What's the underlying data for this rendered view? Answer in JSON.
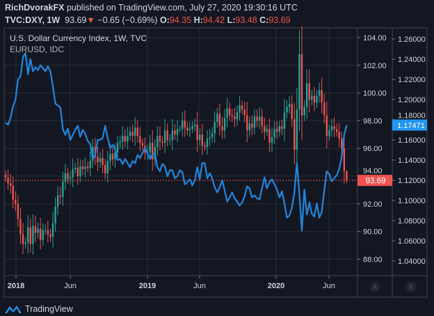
{
  "header": {
    "author": "RichDvorakFX",
    "published_text": "published on TradingView.com, July 27, 2020 19:30:16 UTC",
    "symbol": "TVC:DXY, 1W",
    "last": "93.69",
    "change": "−0.65 (−0.69%)",
    "o_label": "O:",
    "o": "94.35",
    "h_label": "H:",
    "h": "94.42",
    "l_label": "L:",
    "l": "93.48",
    "c_label": "C:",
    "c": "93.69"
  },
  "legend": {
    "main": "U.S. Dollar Currency Index, 1W, TVC",
    "overlay": "EURUSD, IDC"
  },
  "footer": {
    "brand": "TradingView"
  },
  "scale_buttons": {
    "a": "A",
    "b": "B"
  },
  "colors": {
    "bg": "#131722",
    "up": "#26a69a",
    "down": "#ef5350",
    "line": "#2184d9",
    "grid": "#2a2e39",
    "text": "#d1d4dc"
  },
  "chart_data": {
    "type": "candlestick+line",
    "interval": "1W",
    "x_start": "2017-12-04",
    "x_tick_labels": [
      "2018",
      "Jun",
      "2019",
      "Jun",
      "2020",
      "Jun"
    ],
    "series": [
      {
        "name": "DXY",
        "axis": "left-scale",
        "type": "candlestick",
        "ylim": [
          87,
          105.5
        ],
        "tick_labels": [
          "104.00",
          "102.00",
          "100.00",
          "98.00",
          "96.00",
          "94.00",
          "92.00",
          "90.00",
          "88.00"
        ],
        "last_label": "93.69",
        "last_ohlc": {
          "open": 94.35,
          "high": 94.42,
          "low": 93.48,
          "close": 93.69
        },
        "close": [
          93.9,
          93.5,
          93.3,
          92.3,
          92.0,
          90.9,
          89.8,
          89.1,
          89.2,
          90.3,
          89.1,
          90.4,
          89.9,
          90.2,
          89.4,
          90.1,
          90.1,
          89.8,
          89.6,
          90.6,
          91.8,
          92.6,
          92.5,
          93.6,
          94.2,
          93.8,
          93.9,
          94.5,
          94.6,
          94.0,
          94.7,
          94.5,
          94.7,
          94.6,
          95.1,
          96.1,
          95.4,
          95.0,
          95.3,
          94.8,
          94.2,
          95.1,
          95.6,
          95.2,
          95.7,
          96.4,
          96.5,
          96.9,
          96.5,
          96.9,
          97.2,
          96.9,
          97.5,
          96.9,
          96.4,
          96.2,
          95.7,
          95.7,
          96.4,
          95.2,
          96.1,
          96.9,
          96.5,
          96.4,
          97.3,
          96.6,
          96.6,
          97.3,
          97.0,
          97.4,
          97.4,
          98.0,
          97.5,
          97.3,
          97.4,
          97.6,
          97.7,
          96.6,
          97.0,
          96.2,
          96.1,
          96.7,
          96.8,
          97.1,
          97.9,
          98.5,
          97.6,
          97.3,
          98.2,
          98.9,
          98.4,
          98.3,
          98.1,
          98.6,
          99.1,
          98.8,
          98.4,
          97.3,
          97.8,
          97.5,
          98.3,
          98.0,
          98.3,
          97.6,
          97.2,
          97.4,
          96.4,
          96.8,
          97.4,
          97.2,
          97.6,
          97.4,
          98.6,
          99.0,
          99.2,
          98.1,
          95.9,
          98.8,
          102.8,
          98.4,
          99.0,
          100.7,
          99.5,
          99.8,
          99.3,
          99.8,
          100.2,
          99.3,
          98.4,
          96.9,
          97.3,
          97.6,
          97.4,
          97.2,
          96.7,
          96.0,
          94.35,
          93.69
        ]
      },
      {
        "name": "EURUSD",
        "axis": "right-scale",
        "type": "line",
        "ylim": [
          1.0275,
          1.2725
        ],
        "tick_labels": [
          "1.26000",
          "1.24000",
          "1.22000",
          "1.20000",
          "1.18000",
          "1.16000",
          "1.14000",
          "1.12000",
          "1.10000",
          "1.08000",
          "1.06000",
          "1.04000"
        ],
        "last_label": "1.17471",
        "values": [
          1.177,
          1.175,
          1.182,
          1.193,
          1.2,
          1.22,
          1.223,
          1.242,
          1.246,
          1.225,
          1.24,
          1.228,
          1.232,
          1.229,
          1.234,
          1.231,
          1.228,
          1.233,
          1.228,
          1.213,
          1.196,
          1.194,
          1.192,
          1.171,
          1.165,
          1.171,
          1.16,
          1.165,
          1.17,
          1.174,
          1.163,
          1.17,
          1.166,
          1.159,
          1.156,
          1.141,
          1.145,
          1.16,
          1.16,
          1.162,
          1.174,
          1.162,
          1.152,
          1.155,
          1.151,
          1.14,
          1.141,
          1.136,
          1.141,
          1.137,
          1.133,
          1.139,
          1.137,
          1.145,
          1.142,
          1.147,
          1.152,
          1.146,
          1.141,
          1.146,
          1.146,
          1.133,
          1.129,
          1.136,
          1.134,
          1.124,
          1.13,
          1.13,
          1.122,
          1.124,
          1.13,
          1.128,
          1.116,
          1.118,
          1.121,
          1.115,
          1.12,
          1.133,
          1.121,
          1.137,
          1.137,
          1.122,
          1.127,
          1.122,
          1.113,
          1.108,
          1.113,
          1.12,
          1.11,
          1.099,
          1.103,
          1.108,
          1.102,
          1.099,
          1.095,
          1.098,
          1.104,
          1.114,
          1.112,
          1.103,
          1.105,
          1.102,
          1.101,
          1.112,
          1.123,
          1.112,
          1.118,
          1.121,
          1.116,
          1.111,
          1.103,
          1.109,
          1.097,
          1.083,
          1.085,
          1.093,
          1.108,
          1.137,
          1.107,
          1.07,
          1.111,
          1.086,
          1.098,
          1.087,
          1.084,
          1.097,
          1.083,
          1.089,
          1.11,
          1.129,
          1.126,
          1.119,
          1.122,
          1.125,
          1.131,
          1.143,
          1.165,
          1.17471
        ]
      }
    ]
  }
}
